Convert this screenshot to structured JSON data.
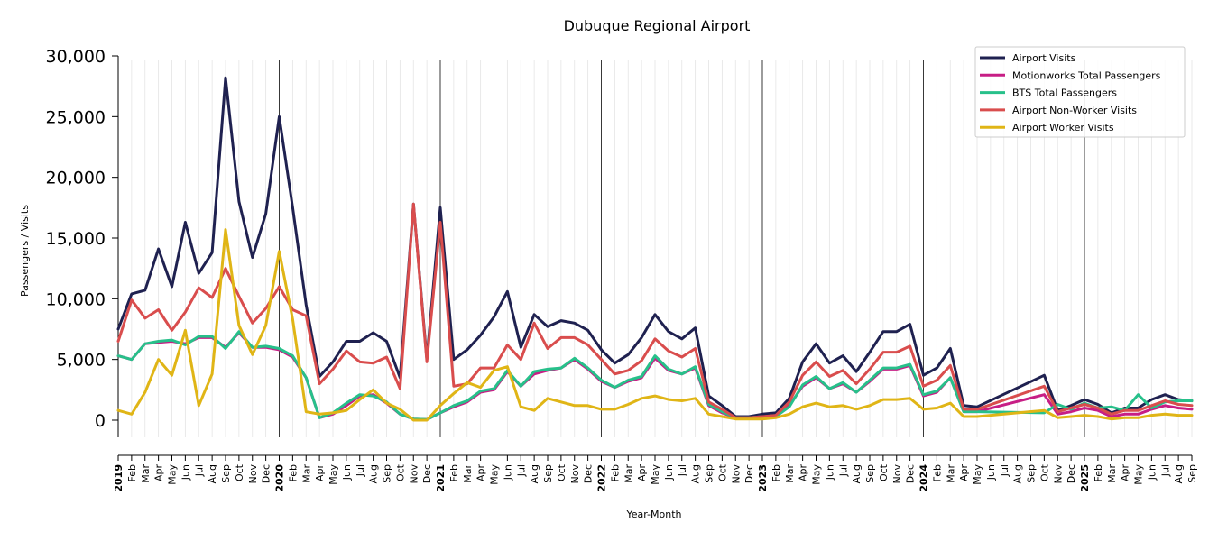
{
  "chart_data": {
    "type": "line",
    "title": "Dubuque Regional Airport",
    "xlabel": "Year-Month",
    "ylabel": "Passengers / Visits",
    "ylim": [
      -1500,
      30500
    ],
    "yticks": [
      0,
      5000,
      10000,
      15000,
      20000,
      25000,
      30000
    ],
    "ytick_labels": [
      "0",
      "5,000",
      "10,000",
      "15,000",
      "20,000",
      "25,000",
      "30,000"
    ],
    "grid": "vertical minor lines per month; dark vertical lines at year starts",
    "legend_position": "top-right",
    "x": [
      "2019-01",
      "2019-02",
      "2019-03",
      "2019-04",
      "2019-05",
      "2019-06",
      "2019-07",
      "2019-08",
      "2019-09",
      "2019-10",
      "2019-11",
      "2019-12",
      "2020-01",
      "2020-02",
      "2020-03",
      "2020-04",
      "2020-05",
      "2020-06",
      "2020-07",
      "2020-08",
      "2020-09",
      "2020-10",
      "2020-11",
      "2020-12",
      "2021-01",
      "2021-02",
      "2021-03",
      "2021-04",
      "2021-05",
      "2021-06",
      "2021-07",
      "2021-08",
      "2021-09",
      "2021-10",
      "2021-11",
      "2021-12",
      "2022-01",
      "2022-02",
      "2022-03",
      "2022-04",
      "2022-05",
      "2022-06",
      "2022-07",
      "2022-08",
      "2022-09",
      "2022-10",
      "2022-11",
      "2022-12",
      "2023-01",
      "2023-02",
      "2023-03",
      "2023-04",
      "2023-05",
      "2023-06",
      "2023-07",
      "2023-08",
      "2023-09",
      "2023-10",
      "2023-11",
      "2023-12",
      "2024-01",
      "2024-02",
      "2024-03",
      "2024-04",
      "2024-05",
      "2024-06",
      "2024-07",
      "2024-08",
      "2024-09",
      "2024-10",
      "2024-11",
      "2024-12",
      "2025-01",
      "2025-02",
      "2025-03",
      "2025-04",
      "2025-05",
      "2025-06",
      "2025-07",
      "2025-08",
      "2025-09"
    ],
    "x_tick_labels": [
      "2019",
      "Feb",
      "Mar",
      "Apr",
      "May",
      "Jun",
      "Jul",
      "Aug",
      "Sep",
      "Oct",
      "Nov",
      "Dec",
      "2020",
      "Feb",
      "Mar",
      "Apr",
      "May",
      "Jun",
      "Jul",
      "Aug",
      "Sep",
      "Oct",
      "Nov",
      "Dec",
      "2021",
      "Feb",
      "Mar",
      "Apr",
      "May",
      "Jun",
      "Jul",
      "Aug",
      "Sep",
      "Oct",
      "Nov",
      "Dec",
      "2022",
      "Feb",
      "Mar",
      "Apr",
      "May",
      "Jun",
      "Jul",
      "Aug",
      "Sep",
      "Oct",
      "Nov",
      "Dec",
      "2023",
      "Feb",
      "Mar",
      "Apr",
      "May",
      "Jun",
      "Jul",
      "Aug",
      "Sep",
      "Oct",
      "Nov",
      "Dec",
      "2024",
      "Feb",
      "Mar",
      "Apr",
      "May",
      "Jun",
      "Jul",
      "Aug",
      "Sep",
      "Oct",
      "Nov",
      "Dec",
      "2025",
      "Feb",
      "Mar",
      "Apr",
      "May",
      "Jun",
      "Jul",
      "Aug",
      "Sep"
    ],
    "series": [
      {
        "name": "Airport Visits",
        "color": "#1f2150",
        "values": [
          7500,
          10400,
          10700,
          14100,
          11000,
          16300,
          12100,
          13800,
          28200,
          18000,
          13400,
          17000,
          25000,
          17500,
          9500,
          3600,
          4800,
          6500,
          6500,
          7200,
          6500,
          3500,
          17800,
          5000,
          17500,
          5000,
          5800,
          7000,
          8500,
          10600,
          6000,
          8700,
          7700,
          8200,
          8000,
          7400,
          5800,
          4700,
          5400,
          6800,
          8700,
          7300,
          6700,
          7600,
          2000,
          1200,
          300,
          300,
          500,
          600,
          1800,
          4800,
          6300,
          4700,
          5300,
          4000,
          5600,
          7300,
          7300,
          7900,
          3700,
          4300,
          5900,
          1200,
          1100,
          null,
          null,
          null,
          null,
          3700,
          800,
          1200,
          1700,
          1300,
          600,
          1000,
          1000,
          1700,
          2100,
          1700,
          1600
        ],
        "_note": "Jun-Sep 2024 shown as straight line between May and Oct"
      },
      {
        "name": "Motionworks Total Passengers",
        "color": "#c71e85",
        "values": [
          5300,
          5000,
          6300,
          6400,
          6500,
          6300,
          6800,
          6800,
          6000,
          7200,
          6000,
          6000,
          5800,
          5200,
          3500,
          200,
          500,
          1200,
          2000,
          2100,
          1400,
          500,
          100,
          50,
          600,
          1100,
          1500,
          2300,
          2500,
          4000,
          2800,
          3800,
          4100,
          4300,
          5000,
          4200,
          3200,
          2700,
          3200,
          3500,
          5100,
          4100,
          3800,
          4300,
          1200,
          600,
          200,
          200,
          300,
          300,
          1200,
          2800,
          3500,
          2600,
          3000,
          2300,
          3200,
          4200,
          4200,
          4500,
          2000,
          2300,
          3500,
          700,
          700,
          null,
          null,
          null,
          null,
          2100,
          500,
          700,
          1000,
          800,
          300,
          500,
          500,
          900,
          1200,
          1000,
          900
        ]
      },
      {
        "name": "BTS Total Passengers",
        "color": "#27c08a",
        "values": [
          5300,
          5000,
          6300,
          6500,
          6600,
          6200,
          6900,
          6900,
          5900,
          7300,
          6000,
          6100,
          5900,
          5300,
          3500,
          200,
          600,
          1400,
          2100,
          2000,
          1500,
          500,
          100,
          50,
          600,
          1200,
          1600,
          2400,
          2600,
          4100,
          2800,
          4000,
          4200,
          4300,
          5100,
          4300,
          3300,
          2700,
          3300,
          3600,
          5300,
          4200,
          3800,
          4400,
          1300,
          700,
          200,
          200,
          300,
          300,
          1100,
          2900,
          3600,
          2600,
          3100,
          2300,
          3300,
          4300,
          4300,
          4600,
          2100,
          2400,
          3500,
          700,
          700,
          null,
          null,
          null,
          null,
          600,
          1300,
          900,
          1400,
          1000,
          1100,
          800,
          2100,
          1000,
          1500,
          1600,
          1600
        ]
      },
      {
        "name": "Airport Non-Worker Visits",
        "color": "#d94d4d",
        "values": [
          6500,
          9900,
          8400,
          9100,
          7400,
          8900,
          10900,
          10100,
          12500,
          10200,
          8000,
          9200,
          11000,
          9100,
          8600,
          3000,
          4200,
          5700,
          4800,
          4700,
          5200,
          2600,
          17800,
          4800,
          16300,
          2800,
          3000,
          4300,
          4300,
          6200,
          5000,
          8000,
          5900,
          6800,
          6800,
          6200,
          5000,
          3800,
          4100,
          4900,
          6700,
          5700,
          5200,
          5900,
          1500,
          900,
          200,
          200,
          300,
          400,
          1500,
          3700,
          4800,
          3600,
          4100,
          3000,
          4200,
          5600,
          5600,
          6100,
          2800,
          3300,
          4500,
          900,
          900,
          null,
          null,
          null,
          null,
          2800,
          700,
          1000,
          1300,
          1000,
          500,
          800,
          800,
          1200,
          1600,
          1300,
          1200
        ]
      },
      {
        "name": "Airport Worker Visits",
        "color": "#e0b516",
        "values": [
          800,
          500,
          2300,
          5000,
          3700,
          7400,
          1200,
          3800,
          15700,
          7800,
          5400,
          7800,
          13900,
          8300,
          700,
          500,
          600,
          800,
          1700,
          2500,
          1400,
          900,
          0,
          0,
          1200,
          2200,
          3100,
          2700,
          4100,
          4400,
          1100,
          800,
          1800,
          1500,
          1200,
          1200,
          900,
          900,
          1300,
          1800,
          2000,
          1700,
          1600,
          1800,
          500,
          300,
          100,
          100,
          100,
          200,
          500,
          1100,
          1400,
          1100,
          1200,
          900,
          1200,
          1700,
          1700,
          1800,
          900,
          1000,
          1400,
          300,
          300,
          null,
          null,
          null,
          null,
          800,
          200,
          300,
          400,
          300,
          100,
          200,
          200,
          400,
          500,
          400,
          400
        ]
      }
    ]
  }
}
